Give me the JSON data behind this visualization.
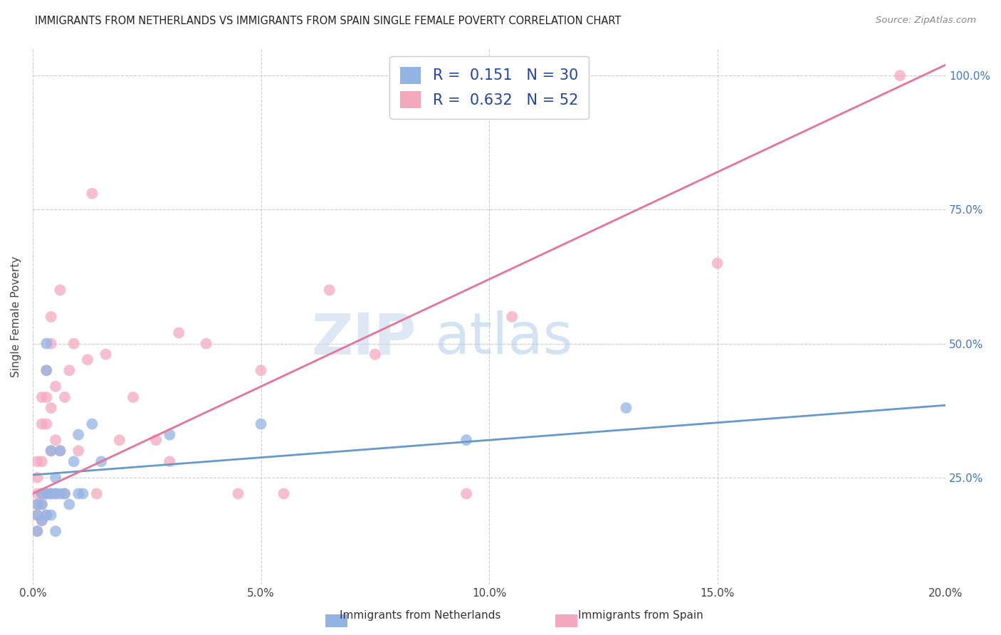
{
  "title": "IMMIGRANTS FROM NETHERLANDS VS IMMIGRANTS FROM SPAIN SINGLE FEMALE POVERTY CORRELATION CHART",
  "source": "Source: ZipAtlas.com",
  "ylabel": "Single Female Poverty",
  "legend_label1": "Immigrants from Netherlands",
  "legend_label2": "Immigrants from Spain",
  "R1": 0.151,
  "N1": 30,
  "R2": 0.632,
  "N2": 52,
  "color1": "#92B4E3",
  "color2": "#F4A8C0",
  "line_color1": "#6699CC",
  "line_color2": "#E8729A",
  "watermark_zip": "ZIP",
  "watermark_atlas": "atlas",
  "x_min": 0.0,
  "x_max": 0.2,
  "y_min": 0.05,
  "y_max": 1.05,
  "x_ticks": [
    0.0,
    0.05,
    0.1,
    0.15,
    0.2
  ],
  "x_tick_labels": [
    "0.0%",
    "5.0%",
    "10.0%",
    "15.0%",
    "20.0%"
  ],
  "y_ticks": [
    0.25,
    0.5,
    0.75,
    1.0
  ],
  "y_tick_labels_right": [
    "25.0%",
    "50.0%",
    "75.0%",
    "100.0%"
  ],
  "nl_line_x0": 0.0,
  "nl_line_y0": 0.255,
  "nl_line_x1": 0.2,
  "nl_line_y1": 0.385,
  "sp_line_x0": 0.0,
  "sp_line_y0": 0.22,
  "sp_line_x1": 0.2,
  "sp_line_y1": 1.02,
  "netherlands_x": [
    0.001,
    0.001,
    0.001,
    0.002,
    0.002,
    0.002,
    0.003,
    0.003,
    0.003,
    0.003,
    0.004,
    0.004,
    0.004,
    0.005,
    0.005,
    0.005,
    0.006,
    0.006,
    0.007,
    0.008,
    0.009,
    0.01,
    0.01,
    0.011,
    0.013,
    0.015,
    0.03,
    0.05,
    0.095,
    0.13
  ],
  "netherlands_y": [
    0.18,
    0.15,
    0.2,
    0.2,
    0.22,
    0.17,
    0.45,
    0.5,
    0.22,
    0.18,
    0.3,
    0.22,
    0.18,
    0.22,
    0.25,
    0.15,
    0.3,
    0.22,
    0.22,
    0.2,
    0.28,
    0.22,
    0.33,
    0.22,
    0.35,
    0.28,
    0.33,
    0.35,
    0.32,
    0.38
  ],
  "spain_x": [
    0.001,
    0.001,
    0.001,
    0.001,
    0.001,
    0.001,
    0.002,
    0.002,
    0.002,
    0.002,
    0.002,
    0.002,
    0.003,
    0.003,
    0.003,
    0.003,
    0.003,
    0.003,
    0.004,
    0.004,
    0.004,
    0.004,
    0.004,
    0.005,
    0.005,
    0.005,
    0.006,
    0.006,
    0.007,
    0.007,
    0.008,
    0.009,
    0.01,
    0.012,
    0.013,
    0.014,
    0.016,
    0.019,
    0.022,
    0.027,
    0.03,
    0.032,
    0.038,
    0.045,
    0.05,
    0.055,
    0.065,
    0.075,
    0.095,
    0.105,
    0.15,
    0.19
  ],
  "spain_y": [
    0.2,
    0.22,
    0.25,
    0.18,
    0.15,
    0.28,
    0.22,
    0.28,
    0.4,
    0.35,
    0.2,
    0.17,
    0.22,
    0.35,
    0.4,
    0.45,
    0.22,
    0.18,
    0.3,
    0.5,
    0.38,
    0.22,
    0.55,
    0.22,
    0.42,
    0.32,
    0.3,
    0.6,
    0.4,
    0.22,
    0.45,
    0.5,
    0.3,
    0.47,
    0.78,
    0.22,
    0.48,
    0.32,
    0.4,
    0.32,
    0.28,
    0.52,
    0.5,
    0.22,
    0.45,
    0.22,
    0.6,
    0.48,
    0.22,
    0.55,
    0.65,
    1.0
  ]
}
